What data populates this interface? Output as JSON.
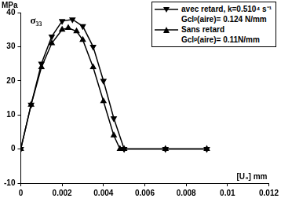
{
  "chart_data": {
    "type": "line",
    "y_label": "MPa",
    "x_label": "[U₃] mm",
    "annotations": [
      "σ₃₃",
      "Gclᵖ(aire)= 0.124 N/mm",
      "Gclᵖ(aire)= 0.11N/mm"
    ],
    "series": [
      {
        "name": "avec retard, k=0.510⁴ s⁻¹",
        "color": "#000000",
        "marker": "triangle-down",
        "line_style": "solid",
        "x": [
          0,
          0.0005,
          0.001,
          0.0015,
          0.002,
          0.0025,
          0.003,
          0.0035,
          0.004,
          0.0045,
          0.005,
          0.007,
          0.009
        ],
        "values": [
          0,
          13,
          25,
          33,
          37.5,
          38,
          36,
          30,
          20,
          9,
          0,
          0,
          0
        ]
      },
      {
        "name": "Sans retard",
        "color": "#000000",
        "marker": "triangle-up",
        "line_style": "solid",
        "x": [
          0,
          0.0005,
          0.001,
          0.0015,
          0.002,
          0.0023,
          0.0027,
          0.003,
          0.0035,
          0.004,
          0.0045,
          0.0048,
          0.005,
          0.007,
          0.009
        ],
        "values": [
          0,
          13,
          24,
          31,
          35,
          35.5,
          34.5,
          32,
          24,
          14,
          4,
          0,
          0,
          0,
          0
        ]
      }
    ],
    "xlim": [
      0,
      0.012
    ],
    "xticks": [
      0,
      0.002,
      0.004,
      0.006,
      0.008,
      0.01,
      0.012
    ],
    "ylim": [
      -10,
      40
    ],
    "yticks": [
      -10,
      0,
      10,
      20,
      30,
      40
    ],
    "grid": false,
    "legend": "top-right"
  }
}
